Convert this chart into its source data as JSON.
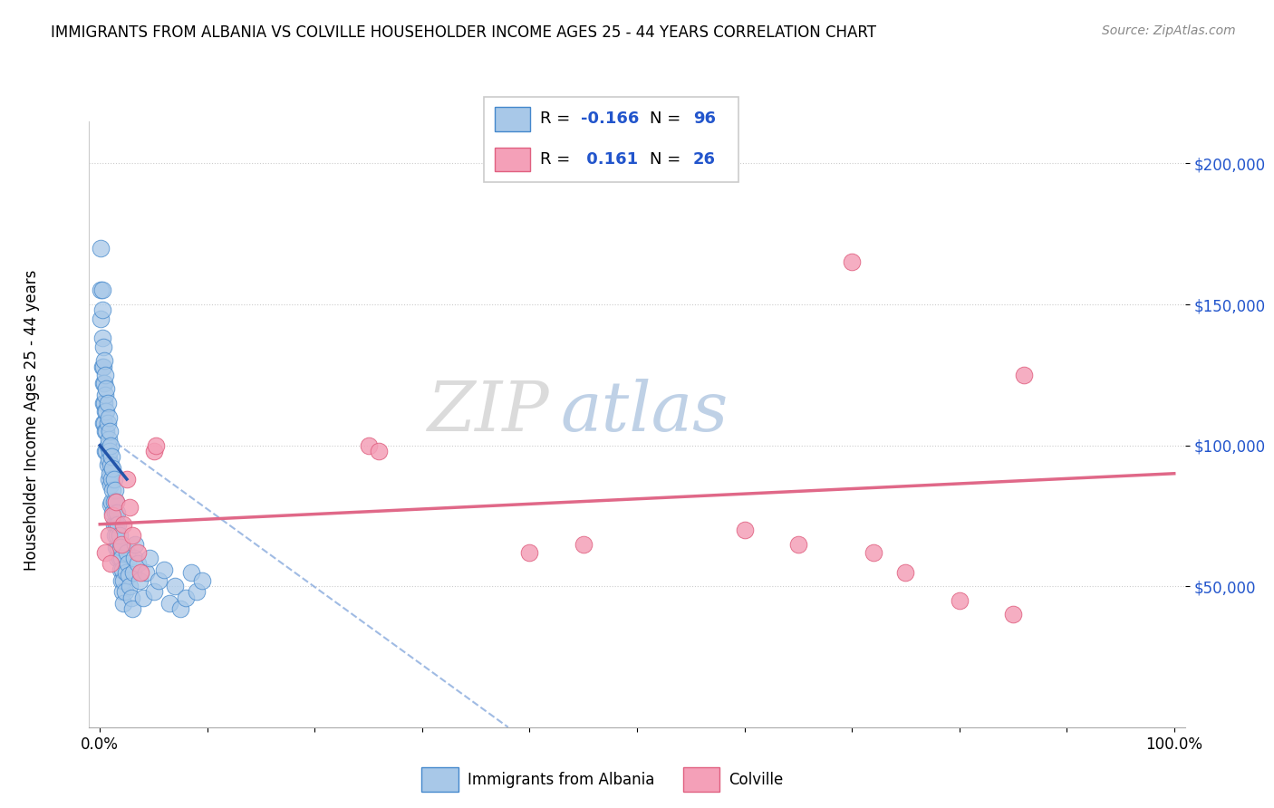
{
  "title": "IMMIGRANTS FROM ALBANIA VS COLVILLE HOUSEHOLDER INCOME AGES 25 - 44 YEARS CORRELATION CHART",
  "source": "Source: ZipAtlas.com",
  "ylabel": "Householder Income Ages 25 - 44 years",
  "ytick_labels": [
    "$50,000",
    "$100,000",
    "$150,000",
    "$200,000"
  ],
  "ytick_values": [
    50000,
    100000,
    150000,
    200000
  ],
  "ylim": [
    0,
    215000
  ],
  "xlim": [
    -0.01,
    1.01
  ],
  "blue_color": "#a8c8e8",
  "pink_color": "#f4a0b8",
  "blue_edge_color": "#4488cc",
  "pink_edge_color": "#e06080",
  "blue_line_color": "#2255aa",
  "pink_line_color": "#e06888",
  "dash_line_color": "#88aadd",
  "watermark_zip": "ZIP",
  "watermark_atlas": "atlas",
  "ytick_color": "#2255cc",
  "blue_scatter_x": [
    0.001,
    0.001,
    0.001,
    0.002,
    0.002,
    0.002,
    0.002,
    0.003,
    0.003,
    0.003,
    0.003,
    0.003,
    0.004,
    0.004,
    0.004,
    0.004,
    0.005,
    0.005,
    0.005,
    0.005,
    0.005,
    0.006,
    0.006,
    0.006,
    0.006,
    0.007,
    0.007,
    0.007,
    0.007,
    0.008,
    0.008,
    0.008,
    0.008,
    0.009,
    0.009,
    0.009,
    0.01,
    0.01,
    0.01,
    0.01,
    0.011,
    0.011,
    0.011,
    0.012,
    0.012,
    0.012,
    0.013,
    0.013,
    0.013,
    0.014,
    0.014,
    0.014,
    0.015,
    0.015,
    0.015,
    0.016,
    0.016,
    0.016,
    0.017,
    0.017,
    0.018,
    0.018,
    0.019,
    0.019,
    0.02,
    0.02,
    0.021,
    0.021,
    0.022,
    0.022,
    0.023,
    0.024,
    0.025,
    0.026,
    0.027,
    0.028,
    0.029,
    0.03,
    0.031,
    0.032,
    0.033,
    0.035,
    0.037,
    0.04,
    0.043,
    0.046,
    0.05,
    0.055,
    0.06,
    0.065,
    0.07,
    0.075,
    0.08,
    0.085,
    0.09,
    0.095
  ],
  "blue_scatter_y": [
    170000,
    155000,
    145000,
    155000,
    148000,
    138000,
    128000,
    135000,
    128000,
    122000,
    115000,
    108000,
    130000,
    122000,
    115000,
    108000,
    125000,
    118000,
    112000,
    105000,
    98000,
    120000,
    112000,
    105000,
    98000,
    115000,
    108000,
    100000,
    93000,
    110000,
    102000,
    95000,
    88000,
    105000,
    98000,
    90000,
    100000,
    93000,
    86000,
    79000,
    96000,
    88000,
    80000,
    92000,
    84000,
    76000,
    88000,
    80000,
    72000,
    84000,
    76000,
    68000,
    80000,
    72000,
    64000,
    76000,
    68000,
    60000,
    72000,
    64000,
    68000,
    60000,
    64000,
    56000,
    60000,
    52000,
    56000,
    48000,
    52000,
    44000,
    48000,
    55000,
    62000,
    58000,
    54000,
    50000,
    46000,
    42000,
    55000,
    60000,
    65000,
    58000,
    52000,
    46000,
    55000,
    60000,
    48000,
    52000,
    56000,
    44000,
    50000,
    42000,
    46000,
    55000,
    48000,
    52000
  ],
  "pink_scatter_x": [
    0.005,
    0.008,
    0.01,
    0.012,
    0.015,
    0.02,
    0.022,
    0.025,
    0.028,
    0.03,
    0.035,
    0.038,
    0.05,
    0.052,
    0.25,
    0.26,
    0.4,
    0.45,
    0.6,
    0.65,
    0.7,
    0.72,
    0.75,
    0.8,
    0.85,
    0.86
  ],
  "pink_scatter_y": [
    62000,
    68000,
    58000,
    75000,
    80000,
    65000,
    72000,
    88000,
    78000,
    68000,
    62000,
    55000,
    98000,
    100000,
    100000,
    98000,
    62000,
    65000,
    70000,
    65000,
    165000,
    62000,
    55000,
    45000,
    40000,
    125000
  ],
  "pink_line_x0": 0.0,
  "pink_line_y0": 72000,
  "pink_line_x1": 1.0,
  "pink_line_y1": 90000,
  "blue_line_x0": 0.0,
  "blue_line_y0": 100000,
  "blue_line_x1": 0.025,
  "blue_line_y1": 88000,
  "dash_line_x0": 0.0,
  "dash_line_y0": 105000,
  "dash_line_x1": 0.38,
  "dash_line_y1": 0
}
